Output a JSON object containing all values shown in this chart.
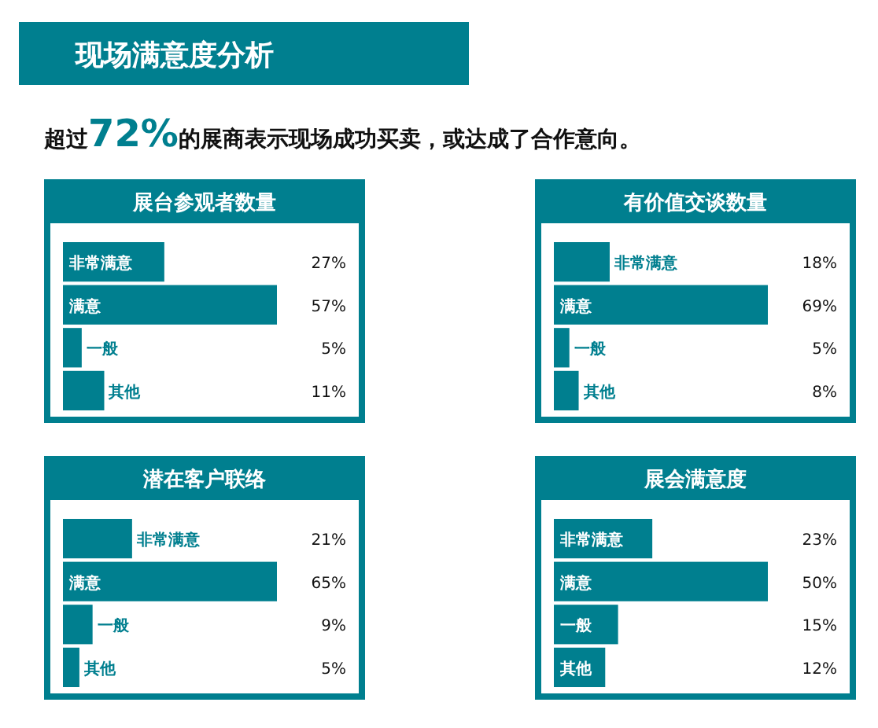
{
  "chart_data": [
    {
      "type": "other",
      "title": "现场满意度分析",
      "subtitle": "超过72%的展商表示现场成功买卖，或达成了合作意向。"
    },
    {
      "type": "bar",
      "orientation": "horizontal",
      "title": "展台参观者数量",
      "categories": [
        "非常满意",
        "满意",
        "一般",
        "其他"
      ],
      "values": [
        27,
        57,
        5,
        11
      ],
      "value_labels": [
        "27%",
        "57%",
        "5%",
        "11%"
      ],
      "color": "#007f8f"
    },
    {
      "type": "bar",
      "orientation": "horizontal",
      "title": "有价值交谈数量",
      "categories": [
        "非常满意",
        "满意",
        "一般",
        "其他"
      ],
      "values": [
        18,
        69,
        5,
        8
      ],
      "value_labels": [
        "18%",
        "69%",
        "5%",
        "8%"
      ],
      "color": "#007f8f"
    },
    {
      "type": "bar",
      "orientation": "horizontal",
      "title": "潜在客户联络",
      "categories": [
        "非常满意",
        "满意",
        "一般",
        "其他"
      ],
      "values": [
        21,
        65,
        9,
        5
      ],
      "value_labels": [
        "21%",
        "65%",
        "9%",
        "5%"
      ],
      "color": "#007f8f"
    },
    {
      "type": "bar",
      "orientation": "horizontal",
      "title": "展会满意度",
      "categories": [
        "非常满意",
        "满意",
        "一般",
        "其他"
      ],
      "values": [
        23,
        50,
        15,
        12
      ],
      "value_labels": [
        "23%",
        "50%",
        "15%",
        "12%"
      ],
      "color": "#007f8f"
    }
  ]
}
